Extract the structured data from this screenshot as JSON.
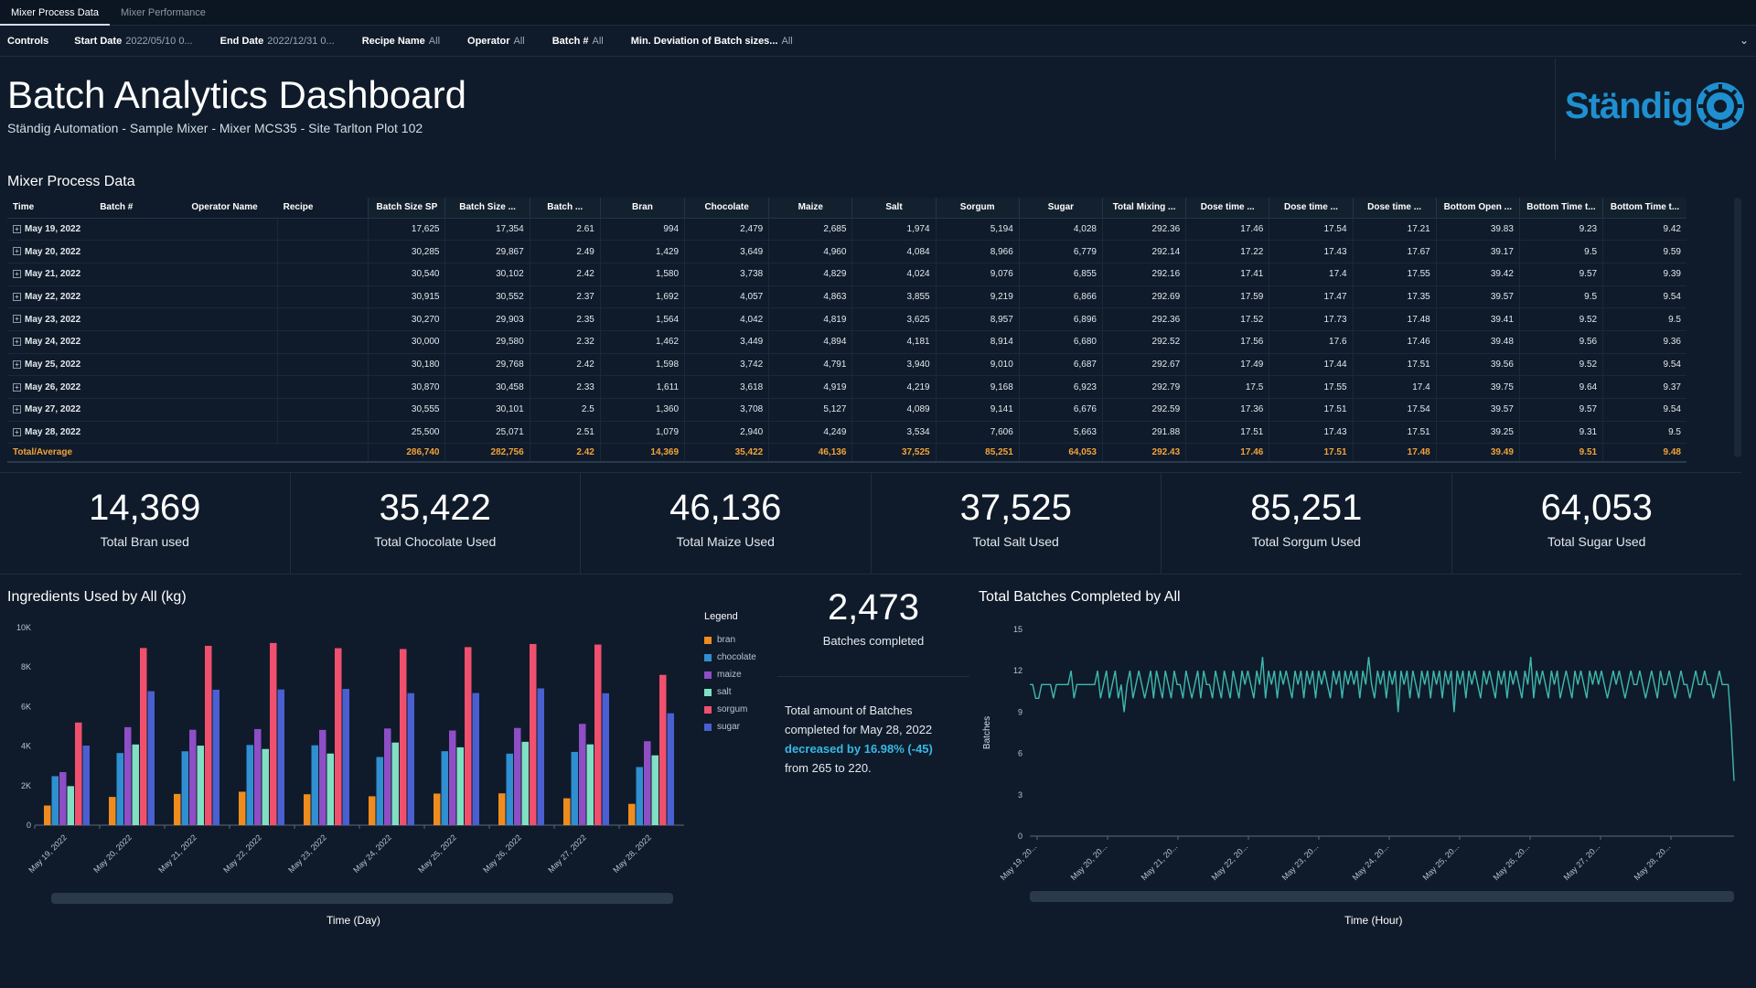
{
  "tabs": [
    {
      "label": "Mixer Process Data",
      "active": true
    },
    {
      "label": "Mixer Performance",
      "active": false
    }
  ],
  "controls": {
    "title": "Controls",
    "items": [
      {
        "label": "Start Date",
        "value": "2022/05/10 0..."
      },
      {
        "label": "End Date",
        "value": "2022/12/31 0..."
      },
      {
        "label": "Recipe Name",
        "value": "All"
      },
      {
        "label": "Operator",
        "value": "All"
      },
      {
        "label": "Batch #",
        "value": "All"
      },
      {
        "label": "Min. Deviation of Batch sizes...",
        "value": "All"
      }
    ]
  },
  "header": {
    "title": "Batch Analytics Dashboard",
    "subtitle": "Ständig Automation - Sample Mixer - Mixer MCS35 - Site Tarlton Plot 102",
    "logo_text": "Ständig"
  },
  "table": {
    "title": "Mixer Process Data",
    "dim_columns": [
      "Time",
      "Batch #",
      "Operator Name",
      "Recipe"
    ],
    "num_columns": [
      "Batch Size SP",
      "Batch Size ...",
      "Batch ...",
      "Bran",
      "Chocolate",
      "Maize",
      "Salt",
      "Sorgum",
      "Sugar",
      "Total Mixing ...",
      "Dose time ...",
      "Dose time ...",
      "Dose time ...",
      "Bottom Open ...",
      "Bottom Time t...",
      "Bottom Time t..."
    ],
    "rows": [
      {
        "time": "May 19, 2022",
        "values": [
          "17,625",
          "17,354",
          "2.61",
          "994",
          "2,479",
          "2,685",
          "1,974",
          "5,194",
          "4,028",
          "292.36",
          "17.46",
          "17.54",
          "17.21",
          "39.83",
          "9.23",
          "9.42"
        ]
      },
      {
        "time": "May 20, 2022",
        "values": [
          "30,285",
          "29,867",
          "2.49",
          "1,429",
          "3,649",
          "4,960",
          "4,084",
          "8,966",
          "6,779",
          "292.14",
          "17.22",
          "17.43",
          "17.67",
          "39.17",
          "9.5",
          "9.59"
        ]
      },
      {
        "time": "May 21, 2022",
        "values": [
          "30,540",
          "30,102",
          "2.42",
          "1,580",
          "3,738",
          "4,829",
          "4,024",
          "9,076",
          "6,855",
          "292.16",
          "17.41",
          "17.4",
          "17.55",
          "39.42",
          "9.57",
          "9.39"
        ]
      },
      {
        "time": "May 22, 2022",
        "values": [
          "30,915",
          "30,552",
          "2.37",
          "1,692",
          "4,057",
          "4,863",
          "3,855",
          "9,219",
          "6,866",
          "292.69",
          "17.59",
          "17.47",
          "17.35",
          "39.57",
          "9.5",
          "9.54"
        ]
      },
      {
        "time": "May 23, 2022",
        "values": [
          "30,270",
          "29,903",
          "2.35",
          "1,564",
          "4,042",
          "4,819",
          "3,625",
          "8,957",
          "6,896",
          "292.36",
          "17.52",
          "17.73",
          "17.48",
          "39.41",
          "9.52",
          "9.5"
        ]
      },
      {
        "time": "May 24, 2022",
        "values": [
          "30,000",
          "29,580",
          "2.32",
          "1,462",
          "3,449",
          "4,894",
          "4,181",
          "8,914",
          "6,680",
          "292.52",
          "17.56",
          "17.6",
          "17.46",
          "39.48",
          "9.56",
          "9.36"
        ]
      },
      {
        "time": "May 25, 2022",
        "values": [
          "30,180",
          "29,768",
          "2.42",
          "1,598",
          "3,742",
          "4,791",
          "3,940",
          "9,010",
          "6,687",
          "292.67",
          "17.49",
          "17.44",
          "17.51",
          "39.56",
          "9.52",
          "9.54"
        ]
      },
      {
        "time": "May 26, 2022",
        "values": [
          "30,870",
          "30,458",
          "2.33",
          "1,611",
          "3,618",
          "4,919",
          "4,219",
          "9,168",
          "6,923",
          "292.79",
          "17.5",
          "17.55",
          "17.4",
          "39.75",
          "9.64",
          "9.37"
        ]
      },
      {
        "time": "May 27, 2022",
        "values": [
          "30,555",
          "30,101",
          "2.5",
          "1,360",
          "3,708",
          "5,127",
          "4,089",
          "9,141",
          "6,676",
          "292.59",
          "17.36",
          "17.51",
          "17.54",
          "39.57",
          "9.57",
          "9.54"
        ]
      },
      {
        "time": "May 28, 2022",
        "values": [
          "25,500",
          "25,071",
          "2.51",
          "1,079",
          "2,940",
          "4,249",
          "3,534",
          "7,606",
          "5,663",
          "291.88",
          "17.51",
          "17.43",
          "17.51",
          "39.25",
          "9.31",
          "9.5"
        ]
      }
    ],
    "total": {
      "label": "Total/Average",
      "values": [
        "286,740",
        "282,756",
        "2.42",
        "14,369",
        "35,422",
        "46,136",
        "37,525",
        "85,251",
        "64,053",
        "292.43",
        "17.46",
        "17.51",
        "17.48",
        "39.49",
        "9.51",
        "9.48"
      ]
    }
  },
  "kpis": [
    {
      "value": "14,369",
      "label": "Total Bran used"
    },
    {
      "value": "35,422",
      "label": "Total Chocolate Used"
    },
    {
      "value": "46,136",
      "label": "Total Maize Used"
    },
    {
      "value": "37,525",
      "label": "Total Salt Used"
    },
    {
      "value": "85,251",
      "label": "Total Sorgum Used"
    },
    {
      "value": "64,053",
      "label": "Total Sugar Used"
    }
  ],
  "batches_kpi": {
    "value": "2,473",
    "label": "Batches completed"
  },
  "narrative": {
    "line1": "Total amount of Batches completed for May 28, 2022",
    "highlight": "decreased by 16.98% (-45)",
    "line3": "from 265 to 220."
  },
  "colors": {
    "bran": "#f08c1e",
    "chocolate": "#2f8fd1",
    "maize": "#8e4ec6",
    "salt": "#7fe0c4",
    "sorgum": "#f0506e",
    "sugar": "#4a5fd1",
    "line": "#3fb8b0",
    "total_text": "#f2a23a",
    "highlight": "#37b8e6"
  },
  "chart_data": [
    {
      "type": "bar",
      "title": "Ingredients Used by All (kg)",
      "xlabel": "Time (Day)",
      "ylabel": "",
      "legend_title": "Legend",
      "legend_position": "right",
      "ylim": [
        0,
        10000
      ],
      "yticks": [
        "0",
        "2K",
        "4K",
        "6K",
        "8K",
        "10K"
      ],
      "categories": [
        "May 19, 2022",
        "May 20, 2022",
        "May 21, 2022",
        "May 22, 2022",
        "May 23, 2022",
        "May 24, 2022",
        "May 25, 2022",
        "May 26, 2022",
        "May 27, 2022",
        "May 28, 2022"
      ],
      "series": [
        {
          "name": "bran",
          "values": [
            994,
            1429,
            1580,
            1692,
            1564,
            1462,
            1598,
            1611,
            1360,
            1079
          ]
        },
        {
          "name": "chocolate",
          "values": [
            2479,
            3649,
            3738,
            4057,
            4042,
            3449,
            3742,
            3618,
            3708,
            2940
          ]
        },
        {
          "name": "maize",
          "values": [
            2685,
            4960,
            4829,
            4863,
            4819,
            4894,
            4791,
            4919,
            5127,
            4249
          ]
        },
        {
          "name": "salt",
          "values": [
            1974,
            4084,
            4024,
            3855,
            3625,
            4181,
            3940,
            4219,
            4089,
            3534
          ]
        },
        {
          "name": "sorgum",
          "values": [
            5194,
            8966,
            9076,
            9219,
            8957,
            8914,
            9010,
            9168,
            9141,
            7606
          ]
        },
        {
          "name": "sugar",
          "values": [
            4028,
            6779,
            6855,
            6866,
            6896,
            6680,
            6687,
            6923,
            6676,
            5663
          ]
        }
      ]
    },
    {
      "type": "line",
      "title": "Total Batches Completed by All",
      "xlabel": "Time (Hour)",
      "ylabel": "Batches",
      "ylim": [
        0,
        15
      ],
      "yticks": [
        "0",
        "3",
        "6",
        "9",
        "12",
        "15"
      ],
      "xticks": [
        "May 19, 20...",
        "May 20, 20...",
        "May 21, 20...",
        "May 22, 20...",
        "May 23, 20...",
        "May 24, 20...",
        "May 25, 20...",
        "May 26, 20...",
        "May 27, 20...",
        "May 28, 20..."
      ],
      "series": [
        {
          "values": [
            11,
            11,
            10,
            10,
            11,
            11,
            11,
            11,
            10,
            11,
            11,
            11,
            11,
            11,
            12,
            10,
            11,
            11,
            11,
            11,
            11,
            11,
            11,
            12,
            10,
            11,
            12,
            10,
            11,
            12,
            10,
            11,
            9,
            11,
            12,
            10,
            11,
            12,
            11,
            10,
            11,
            12,
            10,
            12,
            11,
            10,
            12,
            11,
            10,
            12,
            11,
            11,
            10,
            12,
            11,
            10,
            11,
            12,
            10,
            12,
            11,
            11,
            10,
            12,
            11,
            10,
            12,
            11,
            10,
            12,
            11,
            10,
            12,
            11,
            12,
            11,
            10,
            12,
            11,
            13,
            10,
            12,
            11,
            12,
            10,
            12,
            11,
            12,
            11,
            10,
            12,
            11,
            12,
            10,
            12,
            11,
            12,
            10,
            12,
            11,
            12,
            11,
            10,
            12,
            11,
            12,
            10,
            12,
            11,
            12,
            11,
            12,
            10,
            12,
            11,
            13,
            11,
            10,
            12,
            11,
            12,
            10,
            12,
            11,
            12,
            9,
            12,
            11,
            12,
            10,
            12,
            11,
            10,
            12,
            11,
            12,
            10,
            12,
            11,
            12,
            10,
            12,
            11,
            12,
            9,
            12,
            11,
            12,
            10,
            12,
            11,
            12,
            11,
            10,
            12,
            11,
            12,
            11,
            10,
            12,
            11,
            12,
            10,
            12,
            11,
            12,
            11,
            10,
            12,
            11,
            13,
            10,
            12,
            11,
            12,
            11,
            10,
            12,
            11,
            12,
            10,
            11,
            12,
            11,
            10,
            12,
            11,
            12,
            11,
            10,
            12,
            11,
            12,
            11,
            12,
            11,
            10,
            11,
            12,
            11,
            12,
            11,
            10,
            11,
            12,
            11,
            11,
            12,
            11,
            10,
            11,
            12,
            11,
            10,
            12,
            11,
            11,
            12,
            11,
            10,
            11,
            12,
            11,
            11,
            10,
            11,
            12,
            11,
            11,
            12,
            11,
            11,
            10,
            11,
            12,
            11,
            11,
            11,
            8,
            4
          ]
        }
      ]
    }
  ]
}
